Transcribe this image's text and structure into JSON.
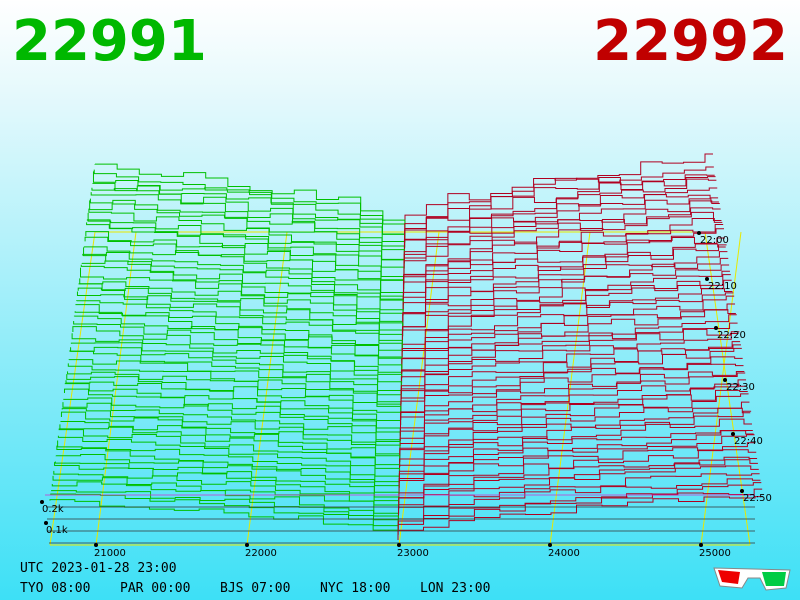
{
  "header": {
    "bid": "22991",
    "ask": "22992"
  },
  "price_axis": [
    "21000",
    "22000",
    "23000",
    "24000",
    "25000"
  ],
  "depth_axis": [
    "0.2k",
    "0.1k"
  ],
  "time_axis": [
    "22:00",
    "22:10",
    "22:20",
    "22:30",
    "22:40",
    "22:50"
  ],
  "clock": {
    "utc": "UTC 2023-01-28 23:00",
    "zones": [
      "TYO 08:00",
      "PAR 00:00",
      "BJS 07:00",
      "NYC 18:00",
      "LON 23:00"
    ]
  }
}
